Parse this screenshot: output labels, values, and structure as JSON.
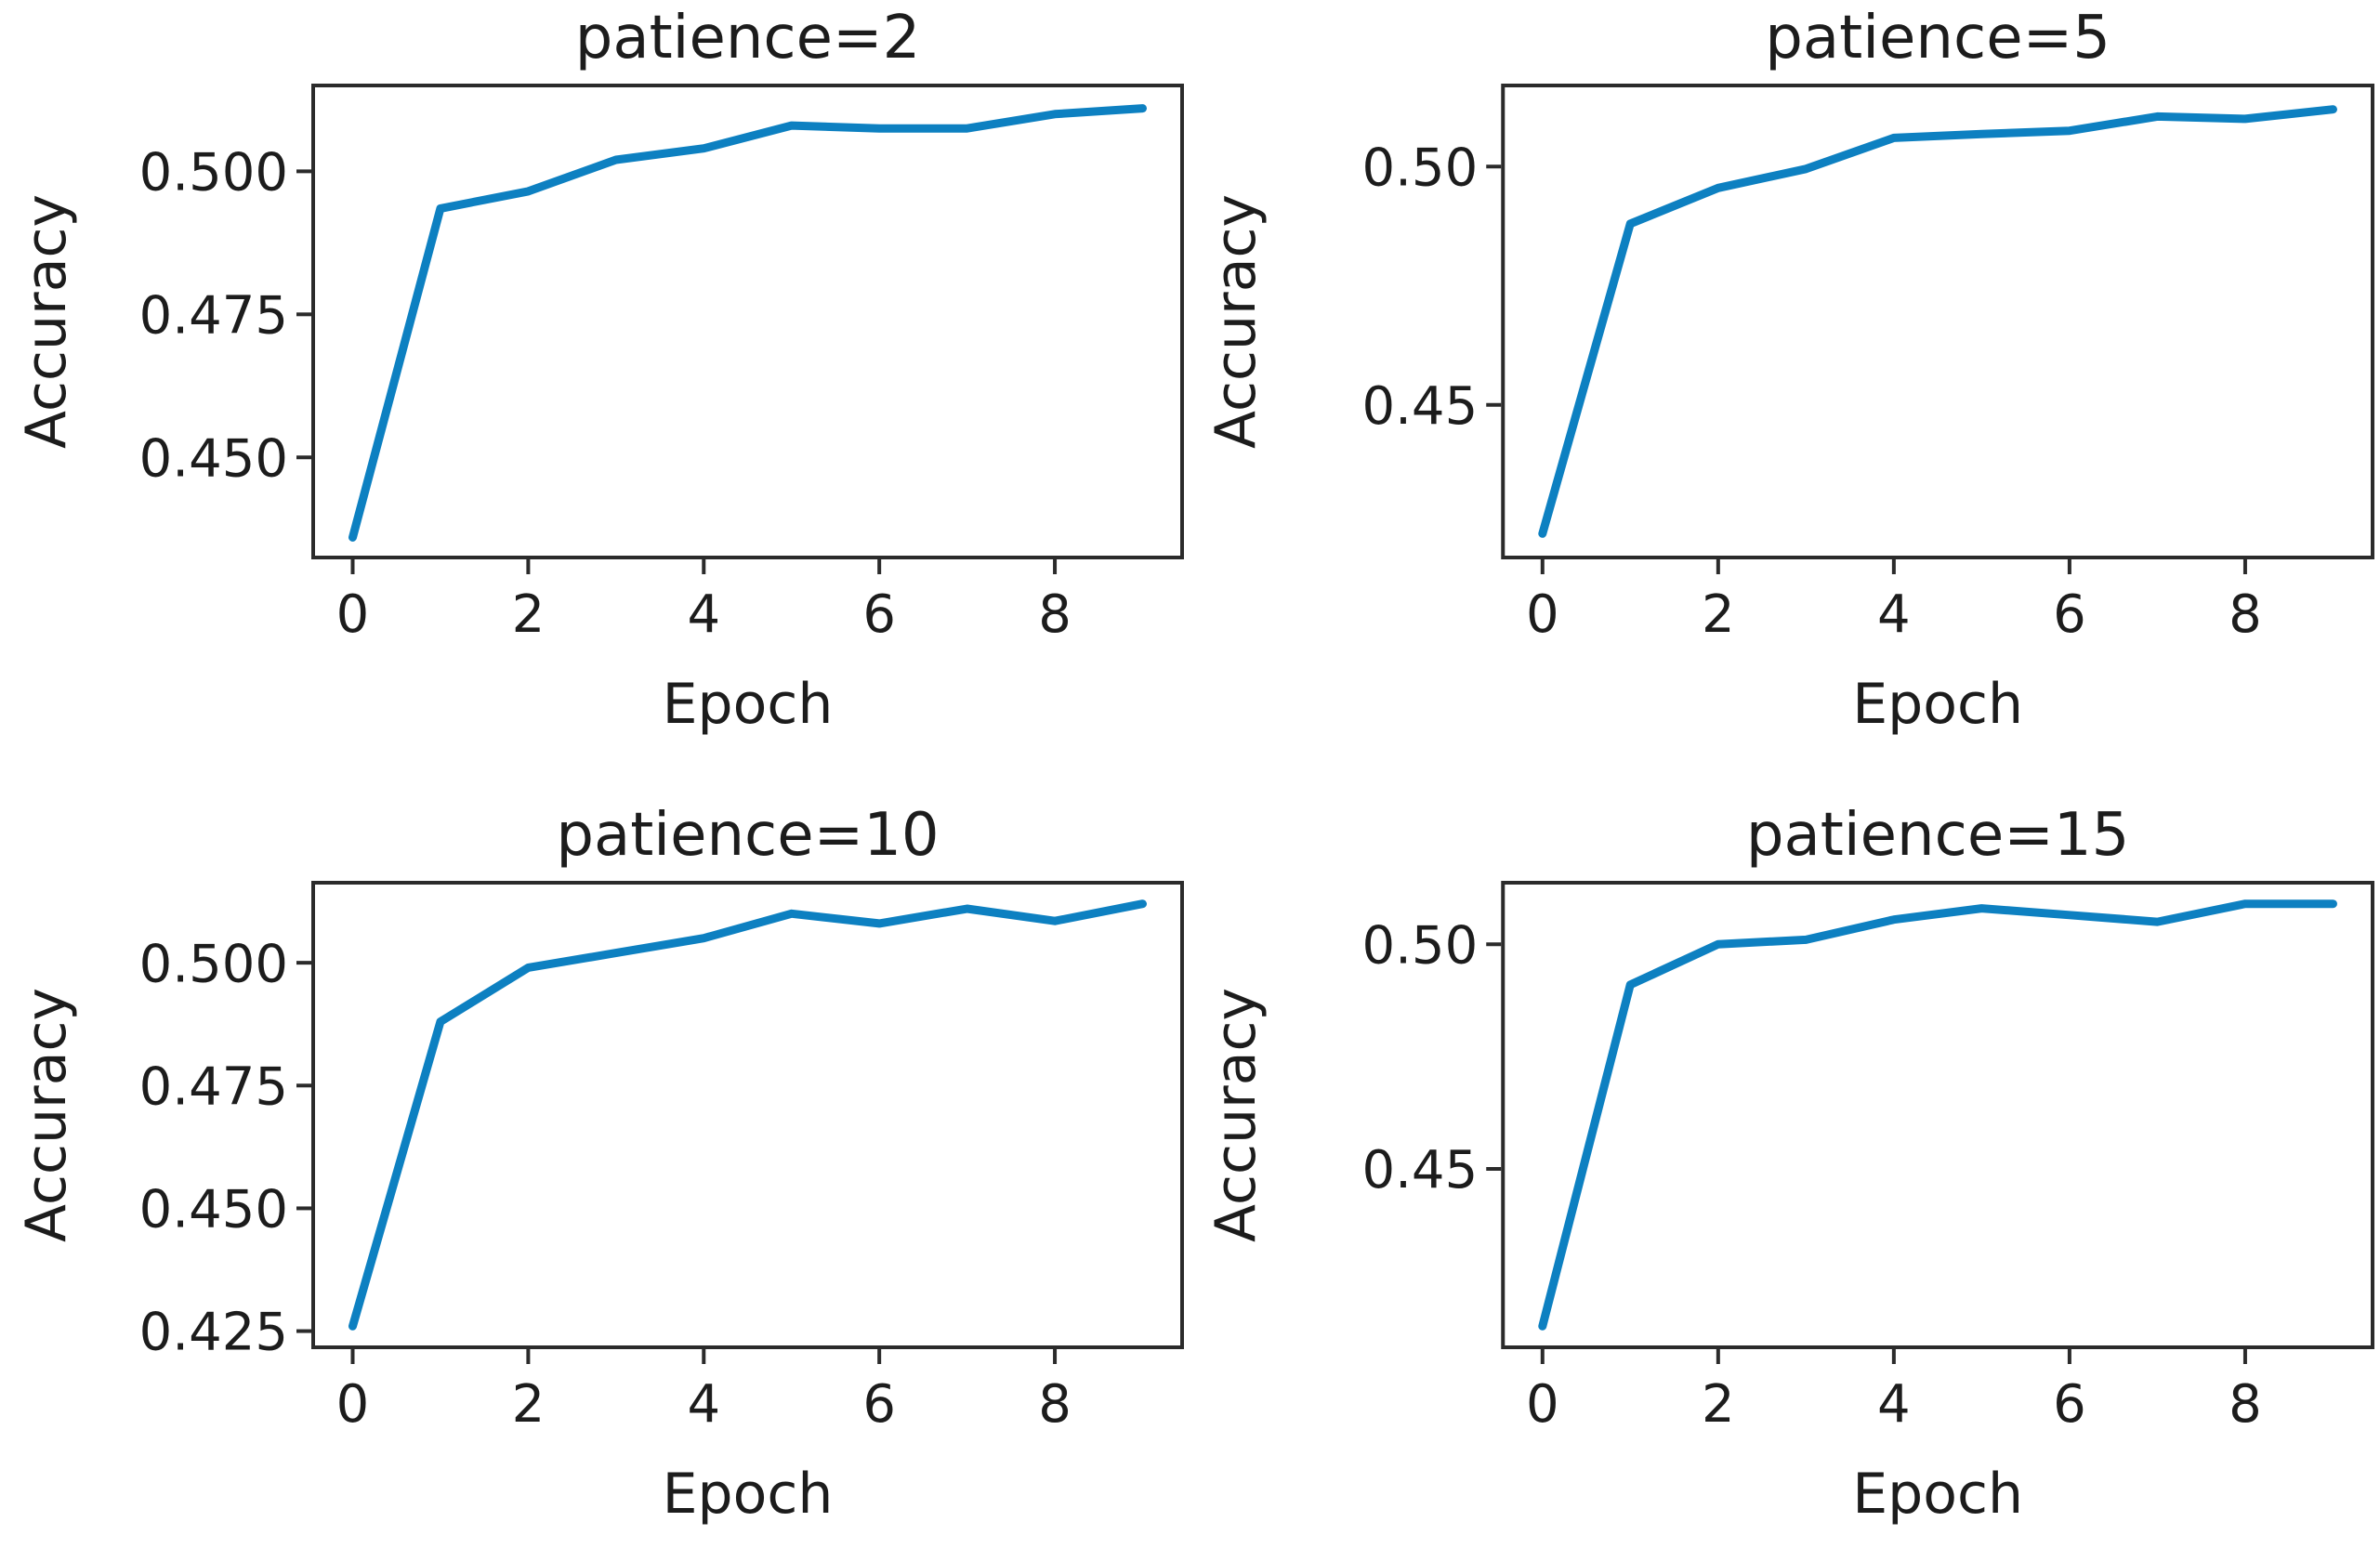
{
  "figure": {
    "background": "#ffffff",
    "colors": {
      "line": "#0d80c1",
      "spine": "#2b2b2b",
      "text": "#1c1c1c"
    }
  },
  "chart_data": [
    {
      "type": "line",
      "title": "patience=2",
      "xlabel": "Epoch",
      "ylabel": "Accuracy",
      "x": [
        0,
        1,
        2,
        3,
        4,
        5,
        6,
        7,
        8,
        9
      ],
      "y": [
        0.436,
        0.4935,
        0.4965,
        0.502,
        0.504,
        0.508,
        0.5075,
        0.5075,
        0.51,
        0.511
      ],
      "xlim": [
        -0.45,
        9.45
      ],
      "ylim": [
        0.4325,
        0.515
      ],
      "xticks": [
        0,
        2,
        4,
        6,
        8
      ],
      "xtick_labels": [
        "0",
        "2",
        "4",
        "6",
        "8"
      ],
      "yticks": [
        0.45,
        0.475,
        0.5
      ],
      "ytick_labels": [
        "0.450",
        "0.475",
        "0.500"
      ],
      "grid": false,
      "legend": null
    },
    {
      "type": "line",
      "title": "patience=5",
      "xlabel": "Epoch",
      "ylabel": "Accuracy",
      "x": [
        0,
        1,
        2,
        3,
        4,
        5,
        6,
        7,
        8,
        9
      ],
      "y": [
        0.423,
        0.488,
        0.4955,
        0.4995,
        0.506,
        0.5068,
        0.5075,
        0.5105,
        0.51,
        0.512
      ],
      "xlim": [
        -0.45,
        9.45
      ],
      "ylim": [
        0.418,
        0.517
      ],
      "xticks": [
        0,
        2,
        4,
        6,
        8
      ],
      "xtick_labels": [
        "0",
        "2",
        "4",
        "6",
        "8"
      ],
      "yticks": [
        0.45,
        0.5
      ],
      "ytick_labels": [
        "0.45",
        "0.50"
      ],
      "grid": false,
      "legend": null
    },
    {
      "type": "line",
      "title": "patience=10",
      "xlabel": "Epoch",
      "ylabel": "Accuracy",
      "x": [
        0,
        1,
        2,
        3,
        4,
        5,
        6,
        7,
        8,
        9
      ],
      "y": [
        0.426,
        0.488,
        0.499,
        0.502,
        0.505,
        0.51,
        0.508,
        0.511,
        0.5085,
        0.512
      ],
      "xlim": [
        -0.45,
        9.45
      ],
      "ylim": [
        0.4217,
        0.5163
      ],
      "xticks": [
        0,
        2,
        4,
        6,
        8
      ],
      "xtick_labels": [
        "0",
        "2",
        "4",
        "6",
        "8"
      ],
      "yticks": [
        0.425,
        0.45,
        0.475,
        0.5
      ],
      "ytick_labels": [
        "0.425",
        "0.450",
        "0.475",
        "0.500"
      ],
      "grid": false,
      "legend": null
    },
    {
      "type": "line",
      "title": "patience=15",
      "xlabel": "Epoch",
      "ylabel": "Accuracy",
      "x": [
        0,
        1,
        2,
        3,
        4,
        5,
        6,
        7,
        8,
        9
      ],
      "y": [
        0.415,
        0.491,
        0.5,
        0.501,
        0.5055,
        0.508,
        0.5065,
        0.505,
        0.509,
        0.509
      ],
      "xlim": [
        -0.45,
        9.45
      ],
      "ylim": [
        0.4103,
        0.5137
      ],
      "xticks": [
        0,
        2,
        4,
        6,
        8
      ],
      "xtick_labels": [
        "0",
        "2",
        "4",
        "6",
        "8"
      ],
      "yticks": [
        0.45,
        0.5
      ],
      "ytick_labels": [
        "0.45",
        "0.50"
      ],
      "grid": false,
      "legend": null
    }
  ]
}
